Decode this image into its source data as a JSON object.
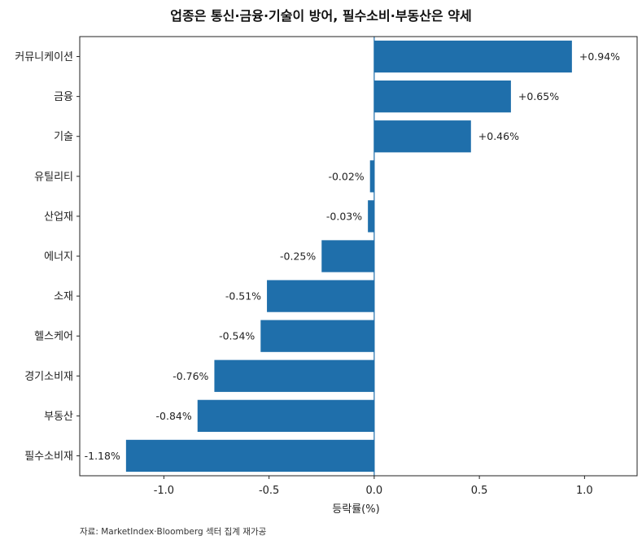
{
  "title": "업종은 통신·금융·기술이 방어, 필수소비·부동산은 약세",
  "source": "자료: MarketIndex·Bloomberg 섹터 집계 재가공",
  "chart_data": {
    "type": "bar",
    "orientation": "horizontal",
    "title": "업종은 통신·금융·기술이 방어, 필수소비·부동산은 약세",
    "xlabel": "등락률(%)",
    "ylabel": "",
    "xlim": [
      -1.4,
      1.25
    ],
    "xticks": [
      -1.0,
      -0.5,
      0.0,
      0.5,
      1.0
    ],
    "xtick_labels": [
      "-1.0",
      "-0.5",
      "0.0",
      "0.5",
      "1.0"
    ],
    "zero_line": true,
    "grid": false,
    "bar_color": "#1f6fab",
    "categories": [
      "커뮤니케이션",
      "금융",
      "기술",
      "유틸리티",
      "산업재",
      "에너지",
      "소재",
      "헬스케어",
      "경기소비재",
      "부동산",
      "필수소비재"
    ],
    "values": [
      0.94,
      0.65,
      0.46,
      -0.02,
      -0.03,
      -0.25,
      -0.51,
      -0.54,
      -0.76,
      -0.84,
      -1.18
    ],
    "value_labels": [
      "+0.94%",
      "+0.65%",
      "+0.46%",
      "-0.02%",
      "-0.03%",
      "-0.25%",
      "-0.51%",
      "-0.54%",
      "-0.76%",
      "-0.84%",
      "-1.18%"
    ]
  }
}
